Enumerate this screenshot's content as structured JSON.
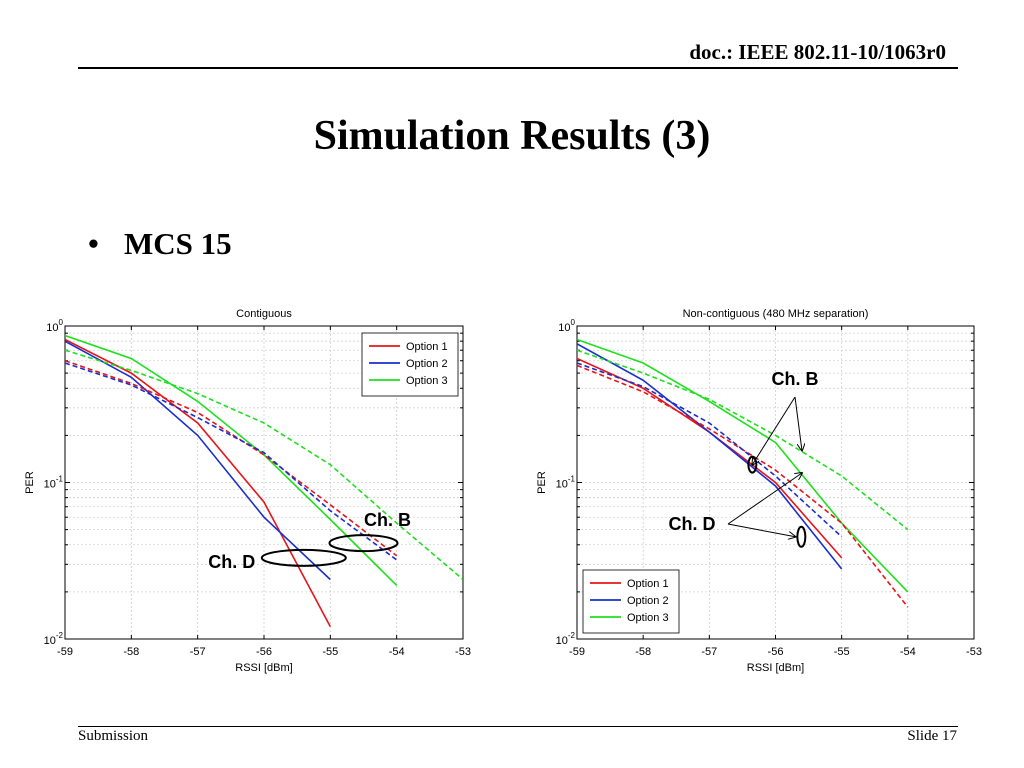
{
  "header": {
    "doc_id": "doc.: IEEE 802.11-10/1063r0"
  },
  "slide": {
    "title": "Simulation Results (3)",
    "bullet": "MCS 15"
  },
  "footer": {
    "left": "Submission",
    "right": "Slide 17"
  },
  "colors": {
    "option1": "#e8141a",
    "option2": "#1a2fcc",
    "option3": "#1ee01e"
  },
  "chart_data": [
    {
      "type": "line",
      "title": "Contiguous",
      "xlabel": "RSSI [dBm]",
      "ylabel": "PER",
      "xlim": [
        -59,
        -53
      ],
      "ylim": [
        0.01,
        1
      ],
      "y_scale": "log",
      "grid": true,
      "legend_position": "top-right",
      "xticks": [
        "-59",
        "-58",
        "-57",
        "-56",
        "-55",
        "-54",
        "-53"
      ],
      "yticks": [
        {
          "base": "10",
          "exp": "0"
        },
        {
          "base": "10",
          "exp": "-1"
        },
        {
          "base": "10",
          "exp": "-2"
        }
      ],
      "series": [
        {
          "name": "Option 1",
          "style": "solid",
          "x": [
            -59,
            -58,
            -57,
            -56,
            -55
          ],
          "y": [
            0.82,
            0.5,
            0.24,
            0.075,
            0.012
          ]
        },
        {
          "name": "Option 2",
          "style": "solid",
          "x": [
            -59,
            -58,
            -57,
            -56,
            -55
          ],
          "y": [
            0.8,
            0.47,
            0.2,
            0.06,
            0.024
          ]
        },
        {
          "name": "Option 3",
          "style": "solid",
          "x": [
            -59,
            -58,
            -57,
            -56,
            -55,
            -54
          ],
          "y": [
            0.87,
            0.62,
            0.33,
            0.15,
            0.058,
            0.022
          ]
        },
        {
          "style": "dashed",
          "color": "option1",
          "x": [
            -59,
            -58,
            -57,
            -56,
            -55,
            -54
          ],
          "y": [
            0.6,
            0.43,
            0.28,
            0.15,
            0.072,
            0.034
          ]
        },
        {
          "style": "dashed",
          "color": "option2",
          "x": [
            -59,
            -58,
            -57,
            -56,
            -55,
            -54
          ],
          "y": [
            0.58,
            0.42,
            0.26,
            0.155,
            0.066,
            0.032
          ]
        },
        {
          "style": "dashed",
          "color": "option3",
          "x": [
            -59,
            -58,
            -57,
            -56,
            -55,
            -54,
            -53
          ],
          "y": [
            0.7,
            0.52,
            0.37,
            0.24,
            0.13,
            0.055,
            0.024
          ]
        }
      ],
      "annotations": [
        {
          "text": "Ch. B",
          "pointer": "ellipse",
          "target_x": -54.5,
          "target_y": 0.041
        },
        {
          "text": "Ch. D",
          "pointer": "ellipse",
          "target_x": -55.4,
          "target_y": 0.033
        }
      ]
    },
    {
      "type": "line",
      "title": "Non-contiguous (480 MHz separation)",
      "xlabel": "RSSI [dBm]",
      "ylabel": "PER",
      "xlim": [
        -59,
        -53
      ],
      "ylim": [
        0.01,
        1
      ],
      "y_scale": "log",
      "grid": true,
      "legend_position": "bottom-left",
      "xticks": [
        "-59",
        "-58",
        "-57",
        "-56",
        "-55",
        "-54",
        "-53"
      ],
      "yticks": [
        {
          "base": "10",
          "exp": "0"
        },
        {
          "base": "10",
          "exp": "-1"
        },
        {
          "base": "10",
          "exp": "-2"
        }
      ],
      "series": [
        {
          "name": "Option 1",
          "style": "solid",
          "x": [
            -59,
            -58,
            -57,
            -56,
            -55
          ],
          "y": [
            0.62,
            0.4,
            0.21,
            0.1,
            0.033
          ]
        },
        {
          "name": "Option 2",
          "style": "solid",
          "x": [
            -59,
            -58,
            -57,
            -56,
            -55
          ],
          "y": [
            0.77,
            0.45,
            0.21,
            0.095,
            0.028
          ]
        },
        {
          "name": "Option 3",
          "style": "solid",
          "x": [
            -59,
            -58,
            -57,
            -56,
            -55,
            -54
          ],
          "y": [
            0.82,
            0.58,
            0.33,
            0.18,
            0.055,
            0.02
          ]
        },
        {
          "style": "dashed",
          "color": "option1",
          "x": [
            -59,
            -58,
            -57,
            -56,
            -55,
            -54
          ],
          "y": [
            0.56,
            0.38,
            0.22,
            0.12,
            0.055,
            0.016
          ]
        },
        {
          "style": "dashed",
          "color": "option2",
          "x": [
            -59,
            -58,
            -57,
            -56,
            -55
          ],
          "y": [
            0.58,
            0.41,
            0.24,
            0.11,
            0.045
          ]
        },
        {
          "style": "dashed",
          "color": "option3",
          "x": [
            -59,
            -58,
            -57,
            -56,
            -55,
            -54
          ],
          "y": [
            0.7,
            0.5,
            0.34,
            0.2,
            0.11,
            0.05
          ]
        }
      ],
      "annotations": [
        {
          "text": "Ch. B",
          "pointer": "arrows",
          "targets": [
            [
              -56.35,
              0.13
            ],
            [
              -55.6,
              0.16
            ]
          ]
        },
        {
          "text": "Ch. D",
          "pointer": "arrows",
          "targets": [
            [
              -55.6,
              0.115
            ],
            [
              -55.7,
              0.045
            ]
          ]
        }
      ]
    }
  ]
}
